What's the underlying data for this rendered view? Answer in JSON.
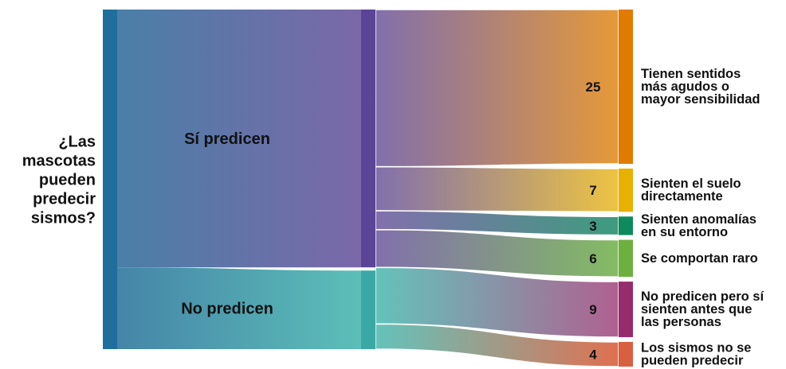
{
  "chart_data": {
    "type": "sankey",
    "root": {
      "label_lines": [
        "¿Las",
        "mascotas",
        "pueden",
        "predecir",
        "sismos?"
      ],
      "color": "#1f6e9c"
    },
    "groups": [
      {
        "id": "si",
        "label": "Sí predicen",
        "total": 41,
        "color": "#5b4596",
        "grad_from": "#4a7fa8",
        "grad_to": "#7b68a8"
      },
      {
        "id": "no",
        "label": "No predicen",
        "total": 13,
        "color": "#3aa8a4",
        "grad_from": "#4585a8",
        "grad_to": "#5cbfb8"
      }
    ],
    "outcomes": [
      {
        "group": "si",
        "value": 25,
        "value_label": "25",
        "label_lines": [
          "Tienen sentidos",
          "más agudos o",
          "mayor sensibilidad"
        ],
        "color": "#e07b00",
        "fill": "#e69938"
      },
      {
        "group": "si",
        "value": 7,
        "value_label": "7",
        "label_lines": [
          "Sienten el suelo",
          "directamente"
        ],
        "color": "#e8b000",
        "fill": "#eec441"
      },
      {
        "group": "si",
        "value": 3,
        "value_label": "3",
        "label_lines": [
          "Sienten anomalías",
          "en su entorno"
        ],
        "color": "#0e8a5c",
        "fill": "#3e9c7e"
      },
      {
        "group": "si",
        "value": 6,
        "value_label": "6",
        "label_lines": [
          "Se comportan raro"
        ],
        "color": "#6eb040",
        "fill": "#84bc62"
      },
      {
        "group": "no",
        "value": 9,
        "value_label": "9",
        "label_lines": [
          "No predicen pero sí",
          "sienten antes que",
          "las personas"
        ],
        "color": "#962c6c",
        "fill": "#b06090"
      },
      {
        "group": "no",
        "value": 4,
        "value_label": "4",
        "label_lines": [
          "Los sismos no se",
          "pueden predecir"
        ],
        "color": "#d86040",
        "fill": "#e07050"
      }
    ]
  }
}
